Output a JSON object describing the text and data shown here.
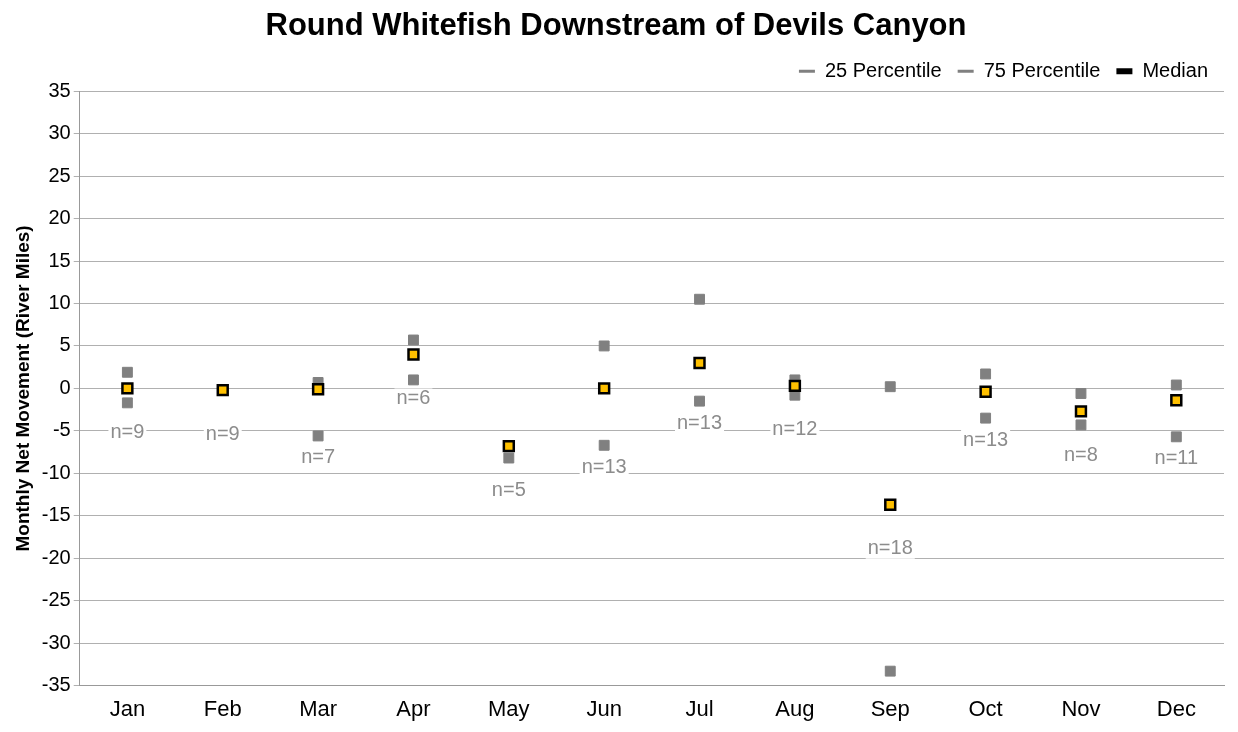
{
  "chart_data": {
    "type": "scatter",
    "title": "Round Whitefish Downstream of Devils Canyon",
    "ylabel": "Monthly Net Movement (River Miles)",
    "categories": [
      "Jan",
      "Feb",
      "Mar",
      "Apr",
      "May",
      "Jun",
      "Jul",
      "Aug",
      "Sep",
      "Oct",
      "Nov",
      "Dec"
    ],
    "series": [
      {
        "name": "25 Percentile",
        "color": "#808080",
        "values": [
          -1.7,
          null,
          -5.6,
          1,
          -8.2,
          -6.7,
          -1.5,
          -0.8,
          -33.3,
          -3.5,
          -4.3,
          -5.7
        ]
      },
      {
        "name": "75 Percentile",
        "color": "#808080",
        "values": [
          1.9,
          null,
          0.7,
          5.7,
          null,
          5,
          10.5,
          1,
          0.2,
          1.7,
          -0.6,
          0.4
        ]
      },
      {
        "name": "Median",
        "color": "#ffc000",
        "values": [
          0,
          -0.2,
          -0.1,
          4,
          -6.8,
          0,
          3,
          0.3,
          -13.7,
          -0.4,
          -2.7,
          -1.4
        ]
      }
    ],
    "annotations": [
      "n=9",
      "n=9",
      "n=7",
      "n=6",
      "n=5",
      "n=13",
      "n=13",
      "n=12",
      "n=18",
      "n=13",
      "n=8",
      "n=11"
    ],
    "ylim": [
      -35,
      35
    ],
    "yticks": [
      -35,
      -30,
      -25,
      -20,
      -15,
      -10,
      -5,
      0,
      5,
      10,
      15,
      20,
      25,
      30,
      35
    ],
    "grid": "y",
    "legend": "top right",
    "marker": "square"
  }
}
